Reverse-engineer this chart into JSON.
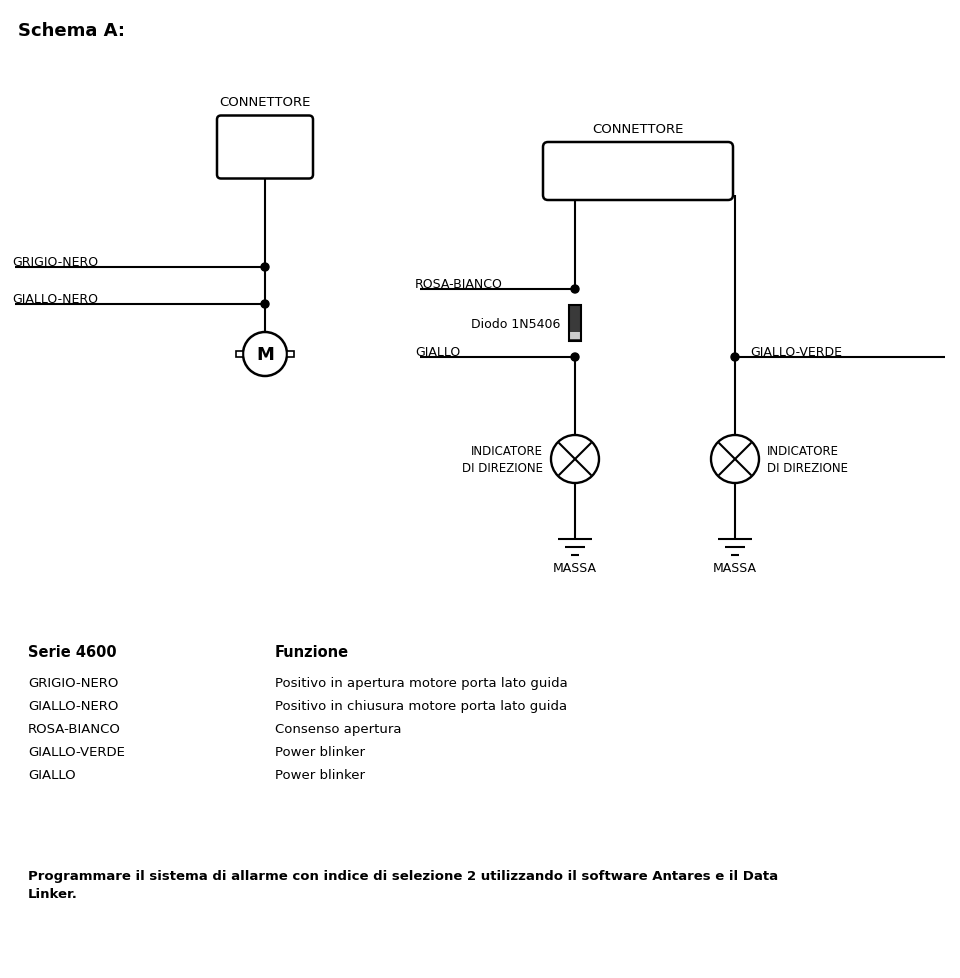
{
  "title": "Schema A:",
  "background_color": "#ffffff",
  "text_color": "#000000",
  "line_color": "#000000",
  "line_width": 1.5,
  "connettore1_label": "CONNETTORE",
  "connettore2_label": "CONNETTORE",
  "grigio_nero_label": "GRIGIO-NERO",
  "giallo_nero_label": "GIALLO-NERO",
  "rosa_bianco_label": "ROSA-BIANCO",
  "giallo_label": "GIALLO",
  "giallo_verde_label": "GIALLO-VERDE",
  "diodo_label": "Diodo 1N5406",
  "ind1_label1": "INDICATORE",
  "ind1_label2": "DI DIREZIONE",
  "ind2_label1": "INDICATORE",
  "ind2_label2": "DI DIREZIONE",
  "massa1_label": "MASSA",
  "massa2_label": "MASSA",
  "serie_header": "Serie 4600",
  "funzione_header": "Funzione",
  "table_rows": [
    [
      "GRIGIO-NERO",
      "Positivo in apertura motore porta lato guida"
    ],
    [
      "GIALLO-NERO",
      "Positivo in chiusura motore porta lato guida"
    ],
    [
      "ROSA-BIANCO",
      "Consenso apertura"
    ],
    [
      "GIALLO-VERDE",
      "Power blinker"
    ],
    [
      "GIALLO",
      "Power blinker"
    ]
  ],
  "footer": "Programmare il sistema di allarme con indice di selezione 2 utilizzando il software Antares e il Data\nLinker."
}
